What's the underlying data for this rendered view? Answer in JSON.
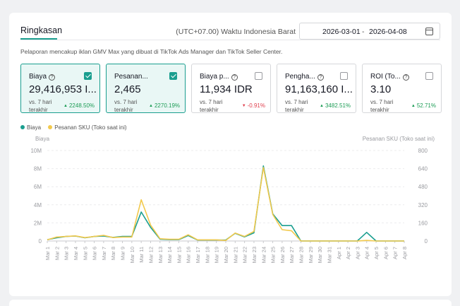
{
  "header": {
    "title": "Ringkasan",
    "timezone": "(UTC+07.00) Waktu Indonesia Barat",
    "date_start": "2026-03-01",
    "date_sep": "-",
    "date_end": "2026-04-08",
    "description": "Pelaporan mencakup iklan GMV Max yang dibuat di TikTok Ads Manager dan TikTok Seller Center."
  },
  "metrics": [
    {
      "label": "Biaya",
      "value": "29,416,953 I...",
      "vs": "vs. 7 hari terakhir",
      "change": "2248.50%",
      "direction": "up",
      "checked": true
    },
    {
      "label": "Pesanan...",
      "value": "2,465",
      "vs": "vs. 7 hari terakhir",
      "change": "2270.19%",
      "direction": "up",
      "checked": true
    },
    {
      "label": "Biaya p...",
      "value": "11,934 IDR",
      "vs": "vs. 7 hari terakhir",
      "change": "-0.91%",
      "direction": "down",
      "checked": false
    },
    {
      "label": "Pengha...",
      "value": "91,163,160 I...",
      "vs": "vs. 7 hari terakhir",
      "change": "3482.51%",
      "direction": "up",
      "checked": false
    },
    {
      "label": "ROI (To...",
      "value": "3.10",
      "vs": "vs. 7 hari terakhir",
      "change": "52.71%",
      "direction": "up",
      "checked": false
    }
  ],
  "colors": {
    "accent": "#1a9e8f",
    "series_cost": "#1a9e8f",
    "series_orders": "#f2c94c",
    "up": "#1c9c55",
    "down": "#e0404e"
  },
  "icons": {
    "info": "info-circle-icon",
    "calendar": "calendar-icon",
    "checkbox": "checkbox-icon"
  },
  "chart_data": {
    "type": "line",
    "ylabel_left": "Biaya",
    "ylabel_right": "Pesanan SKU (Toko saat ini)",
    "y_left_ticks": [
      "0",
      "2M",
      "4M",
      "6M",
      "8M",
      "10M"
    ],
    "y_right_ticks": [
      "0",
      "160",
      "320",
      "480",
      "640",
      "800"
    ],
    "ylim_left": [
      0,
      10000000
    ],
    "ylim_right": [
      0,
      800
    ],
    "legend_position": "top-left",
    "categories": [
      "Mar 1",
      "Mar 2",
      "Mar 3",
      "Mar 4",
      "Mar 5",
      "Mar 6",
      "Mar 7",
      "Mar 8",
      "Mar 9",
      "Mar 10",
      "Mar 11",
      "Mar 12",
      "Mar 13",
      "Mar 14",
      "Mar 15",
      "Mar 16",
      "Mar 17",
      "Mar 18",
      "Mar 19",
      "Mar 20",
      "Mar 21",
      "Mar 22",
      "Mar 23",
      "Mar 24",
      "Mar 25",
      "Mar 26",
      "Mar 27",
      "Mar 28",
      "Mar 29",
      "Mar 30",
      "Mar 31",
      "Apr 1",
      "Apr 2",
      "Apr 3",
      "Apr 4",
      "Apr 5",
      "Apr 6",
      "Apr 7",
      "Apr 8"
    ],
    "series": [
      {
        "name": "Biaya",
        "axis": "left",
        "color": "#1a9e8f",
        "values": [
          150000,
          350000,
          500000,
          550000,
          350000,
          500000,
          550000,
          400000,
          500000,
          500000,
          3200000,
          1500000,
          200000,
          150000,
          150000,
          600000,
          100000,
          100000,
          100000,
          100000,
          850000,
          450000,
          900000,
          8300000,
          3000000,
          1700000,
          1700000,
          0,
          0,
          0,
          0,
          0,
          0,
          0,
          950000,
          0,
          0,
          0,
          0
        ]
      },
      {
        "name": "Pesanan SKU (Toko saat ini)",
        "axis": "right",
        "color": "#f2c94c",
        "values": [
          10,
          35,
          40,
          45,
          30,
          40,
          50,
          30,
          35,
          35,
          365,
          140,
          20,
          15,
          15,
          55,
          10,
          10,
          10,
          5,
          70,
          40,
          85,
          650,
          235,
          100,
          90,
          0,
          0,
          0,
          0,
          0,
          0,
          0,
          5,
          0,
          0,
          0,
          0
        ]
      }
    ]
  }
}
